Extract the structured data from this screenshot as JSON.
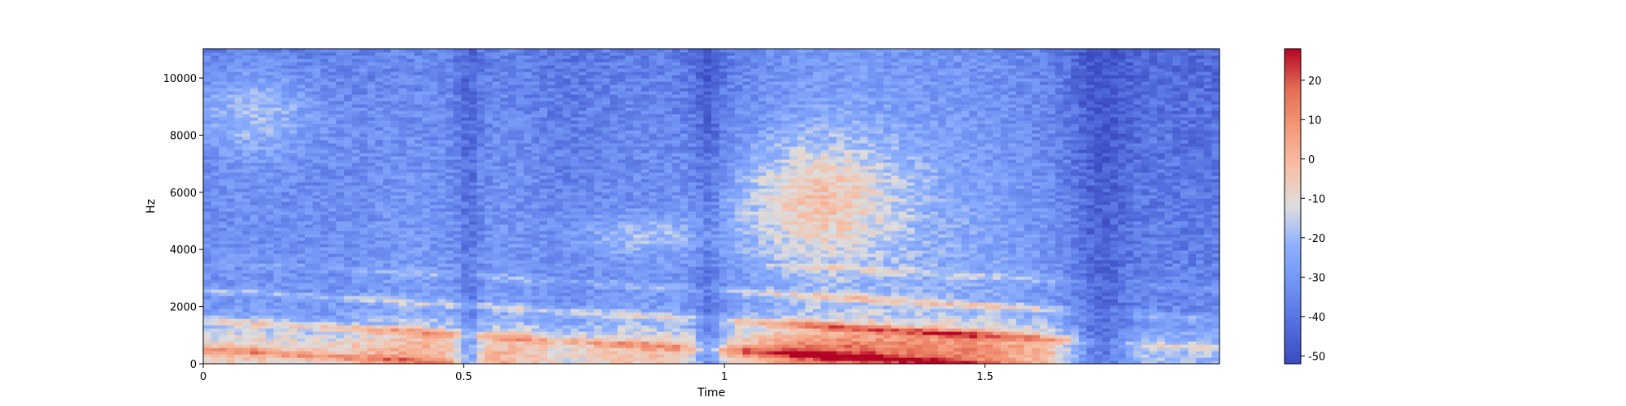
{
  "chart_data": {
    "type": "heatmap",
    "title": "",
    "xlabel": "Time",
    "ylabel": "Hz",
    "xlim": [
      0,
      1.95
    ],
    "ylim": [
      0,
      11025
    ],
    "x_ticks": [
      {
        "value": 0,
        "label": "0"
      },
      {
        "value": 0.5,
        "label": "0.5"
      },
      {
        "value": 1,
        "label": "1"
      },
      {
        "value": 1.5,
        "label": "1.5"
      }
    ],
    "y_ticks": [
      {
        "value": 0,
        "label": "0"
      },
      {
        "value": 2000,
        "label": "2000"
      },
      {
        "value": 4000,
        "label": "4000"
      },
      {
        "value": 6000,
        "label": "6000"
      },
      {
        "value": 8000,
        "label": "8000"
      },
      {
        "value": 10000,
        "label": "10000"
      }
    ],
    "colorbar": {
      "colormap": "coolwarm",
      "range": [
        -52,
        28
      ],
      "ticks": [
        {
          "value": 20,
          "label": "20"
        },
        {
          "value": 10,
          "label": "10"
        },
        {
          "value": 0,
          "label": "0"
        },
        {
          "value": -10,
          "label": "-10"
        },
        {
          "value": -20,
          "label": "-20"
        },
        {
          "value": -30,
          "label": "-30"
        },
        {
          "value": -40,
          "label": "-40"
        },
        {
          "value": -50,
          "label": "-50"
        }
      ]
    },
    "grid": false,
    "colors": {
      "low": "#3b4cc0",
      "mid": "#dddddd",
      "high": "#b40426"
    }
  }
}
